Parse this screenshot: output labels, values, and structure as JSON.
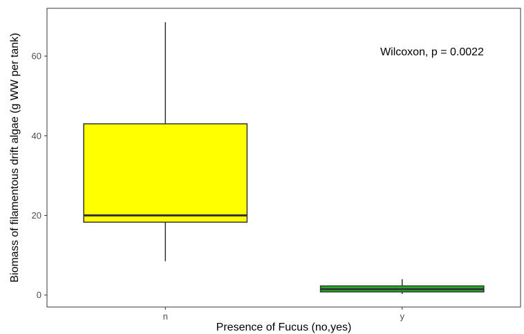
{
  "chart_data": {
    "type": "boxplot",
    "title": "",
    "xlabel": "Presence of Fucus (no,yes)",
    "ylabel": "Biomass of filamentous drift algae (g WW per tank)",
    "categories": [
      "n",
      "y"
    ],
    "ylim": [
      -3,
      72
    ],
    "yticks": [
      0,
      20,
      40,
      60
    ],
    "grid": false,
    "boxes": [
      {
        "category": "n",
        "min": 8.5,
        "q1": 18.3,
        "median": 20.0,
        "q3": 43.0,
        "max": 68.5,
        "color": "#ffff00"
      },
      {
        "category": "y",
        "min": 0.3,
        "q1": 0.8,
        "median": 1.5,
        "q3": 2.3,
        "max": 4.0,
        "color": "#1fbd1f"
      }
    ],
    "annotation": "Wilcoxon, p = 0.0022"
  }
}
